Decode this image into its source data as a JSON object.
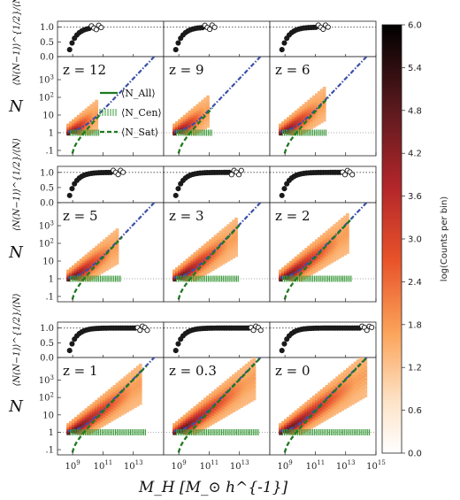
{
  "figure": {
    "xlabel": "M_H [M_⊙ h^{-1}]",
    "ylabel_top": "⟨N(N−1)⟩^{1/2}/⟨N⟩",
    "ylabel_bottom": "N",
    "colorbar_label": "log(Counts per bin)"
  },
  "legend": {
    "all": "⟨N_All⟩",
    "cen": "⟨N_Cen⟩",
    "sat": "⟨N_Sat⟩"
  },
  "colors": {
    "all_line": "#3a4fa8",
    "cen_line": "#3a9a3a",
    "sat_line": "#1f7a1f",
    "points": "#1a1a1a",
    "dotted_ref": "#444444"
  },
  "chart_data": {
    "type": "heatmap",
    "x_scale": "log",
    "xlim": [
      100000000.0,
      1000000000000000.0
    ],
    "x_ticks": [
      1000000000.0,
      100000000000.0,
      10000000000000.0,
      1000000000000000.0
    ],
    "x_tick_labels": [
      "10^9",
      "10^11",
      "10^13",
      "10^15"
    ],
    "ratio_ylim": [
      0,
      1.2
    ],
    "ratio_y_ticks": [
      0.0,
      0.5,
      1.0
    ],
    "ratio_y_tick_labels": [
      "0.0",
      "0.5",
      "1.0"
    ],
    "n_y_scale": "log",
    "n_ylim": [
      0.05,
      20000
    ],
    "n_y_ticks": [
      0.1,
      1,
      10,
      100,
      1000
    ],
    "n_y_tick_labels": [
      ".1",
      "1",
      "10",
      "10^2",
      "10^3"
    ],
    "colorbar": {
      "min": 0.0,
      "max": 6.0,
      "ticks": [
        0.0,
        0.6,
        1.2,
        1.8,
        2.4,
        3.0,
        3.6,
        4.2,
        4.8,
        5.4,
        6.0
      ],
      "tick_labels": [
        "0.0",
        "0.6",
        "1.2",
        "1.8",
        "2.4",
        "3.0",
        "3.6",
        "4.2",
        "4.8",
        "5.4",
        "6.0"
      ]
    },
    "panels": [
      {
        "z": "z = 12",
        "mmin": 8.7,
        "mmax": 10.6
      },
      {
        "z": "z = 9",
        "mmin": 8.7,
        "mmax": 11.0
      },
      {
        "z": "z = 6",
        "mmin": 8.7,
        "mmax": 11.6
      },
      {
        "z": "z = 5",
        "mmin": 8.7,
        "mmax": 12.0
      },
      {
        "z": "z = 3",
        "mmin": 8.7,
        "mmax": 12.8
      },
      {
        "z": "z = 2",
        "mmin": 8.7,
        "mmax": 13.2
      },
      {
        "z": "z = 1",
        "mmin": 8.7,
        "mmax": 13.6
      },
      {
        "z": "z = 0.3",
        "mmin": 8.7,
        "mmax": 14.1
      },
      {
        "z": "z = 0",
        "mmin": 8.7,
        "mmax": 14.4
      }
    ]
  }
}
